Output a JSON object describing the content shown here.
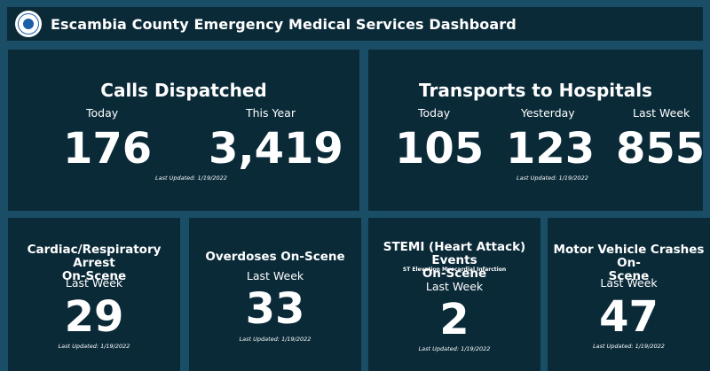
{
  "header": {
    "title": "Escambia County Emergency Medical Services Dashboard",
    "logo_icon": "county-seal-icon"
  },
  "colors": {
    "background": "#1a4e66",
    "card": "#0a2a38",
    "text": "#ffffff"
  },
  "calls_dispatched": {
    "title": "Calls Dispatched",
    "today_label": "Today",
    "today_value": "176",
    "year_label": "This Year",
    "year_value": "3,419",
    "updated": "Last Updated: 1/19/2022"
  },
  "transports": {
    "title": "Transports to Hospitals",
    "today_label": "Today",
    "today_value": "105",
    "yesterday_label": "Yesterday",
    "yesterday_value": "123",
    "week_label": "Last Week",
    "week_value": "855",
    "updated": "Last Updated: 1/19/2022"
  },
  "cardiac": {
    "title_line1": "Cardiac/Respiratory Arrest",
    "title_line2": "On-Scene",
    "label": "Last Week",
    "value": "29",
    "updated": "Last Updated: 1/19/2022"
  },
  "overdoses": {
    "title": "Overdoses On-Scene",
    "label": "Last Week",
    "value": "33",
    "updated": "Last Updated: 1/19/2022"
  },
  "stemi": {
    "title_line1": "STEMI (Heart Attack) Events",
    "title_line2": "On-Scene",
    "subtitle": "ST Elevation Myocardial Infarction",
    "label": "Last Week",
    "value": "2",
    "updated": "Last Updated: 1/19/2022"
  },
  "mvc": {
    "title_line1": "Motor Vehicle Crashes On-",
    "title_line2": "Scene",
    "label": "Last Week",
    "value": "47",
    "updated": "Last Updated: 1/19/2022"
  }
}
